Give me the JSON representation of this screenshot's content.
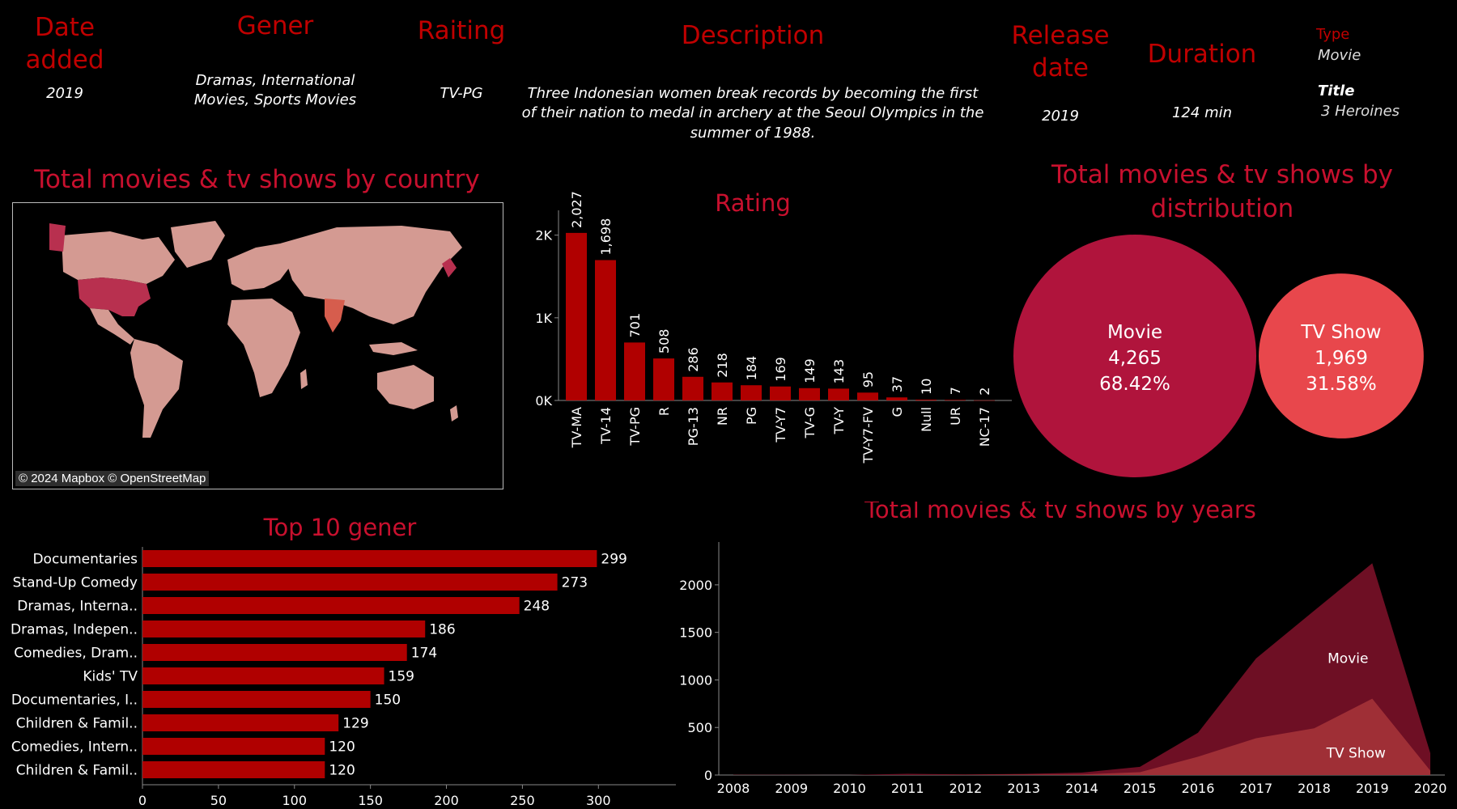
{
  "details": {
    "date_added": {
      "label": "Date added",
      "value": "2019"
    },
    "genre": {
      "label": "Gener",
      "value_line1": "Dramas, International",
      "value_line2": "Movies, Sports Movies"
    },
    "rating": {
      "label": "Raiting",
      "value": "TV-PG"
    },
    "description": {
      "label": "Description",
      "line1": "Three Indonesian women break records by becoming the first",
      "line2": "of their nation to medal in archery at the Seoul Olympics in the",
      "line3": "summer of 1988."
    },
    "release_date": {
      "label_line1": "Release",
      "label_line2": "date",
      "value": "2019"
    },
    "duration": {
      "label": "Duration",
      "value": "124 min"
    },
    "type": {
      "label": "Type",
      "value": "Movie"
    },
    "title": {
      "label": "Title",
      "value": "3 Heroines"
    }
  },
  "colors": {
    "accent": "#c00000",
    "bar": "#b00000",
    "movie": "#b0143c",
    "tvshow": "#e8474c",
    "land": "#d49a92",
    "us": "#b8304f",
    "india": "#d65d4d"
  },
  "map": {
    "title": "Total movies & tv shows by country",
    "credit": "© 2024 Mapbox © OpenStreetMap"
  },
  "distribution": {
    "title_line1": "Total movies & tv shows by",
    "title_line2": "distribution",
    "slices": [
      {
        "name": "Movie",
        "count": "4,265",
        "percent": "68.42%",
        "value": 4265
      },
      {
        "name": "TV Show",
        "count": "1,969",
        "percent": "31.58%",
        "value": 1969
      }
    ]
  },
  "chart_data": [
    {
      "type": "bar",
      "title": "Rating",
      "categories": [
        "TV-MA",
        "TV-14",
        "TV-PG",
        "R",
        "PG-13",
        "NR",
        "PG",
        "TV-Y7",
        "TV-G",
        "TV-Y",
        "TV-Y7-FV",
        "G",
        "Null",
        "UR",
        "NC-17"
      ],
      "values": [
        2027,
        1698,
        701,
        508,
        286,
        218,
        184,
        169,
        149,
        143,
        95,
        37,
        10,
        7,
        2
      ],
      "value_labels": [
        "2,027",
        "1,698",
        "701",
        "508",
        "286",
        "218",
        "184",
        "169",
        "149",
        "143",
        "95",
        "37",
        "10",
        "7",
        "2"
      ],
      "ylim": [
        0,
        2300
      ],
      "yticks": [
        0,
        1000,
        2000
      ],
      "ytick_labels": [
        "0K",
        "1K",
        "2K"
      ]
    },
    {
      "type": "bar",
      "orientation": "horizontal",
      "title": "Top 10 gener",
      "categories": [
        "Documentaries",
        "Stand-Up Comedy",
        "Dramas, Interna..",
        "Dramas, Indepen..",
        "Comedies, Dram..",
        "Kids' TV",
        "Documentaries, I..",
        "Children & Famil..",
        "Comedies, Intern..",
        "Children & Famil.."
      ],
      "values": [
        299,
        273,
        248,
        186,
        174,
        159,
        150,
        129,
        120,
        120
      ],
      "xlim": [
        0,
        335
      ],
      "xticks": [
        0,
        50,
        100,
        150,
        200,
        250,
        300
      ]
    },
    {
      "type": "area",
      "title": "Total movies & tv shows by years",
      "x": [
        2008,
        2009,
        2010,
        2011,
        2012,
        2013,
        2014,
        2015,
        2016,
        2017,
        2018,
        2019,
        2020
      ],
      "series": [
        {
          "name": "Movie",
          "values": [
            1,
            2,
            1,
            13,
            3,
            6,
            19,
            56,
            253,
            839,
            1237,
            1424,
            184
          ]
        },
        {
          "name": "TV Show",
          "values": [
            1,
            0,
            0,
            0,
            3,
            6,
            6,
            30,
            192,
            387,
            491,
            803,
            46
          ]
        }
      ],
      "ylim": [
        0,
        2450
      ],
      "yticks": [
        0,
        500,
        1000,
        1500,
        2000
      ]
    }
  ]
}
